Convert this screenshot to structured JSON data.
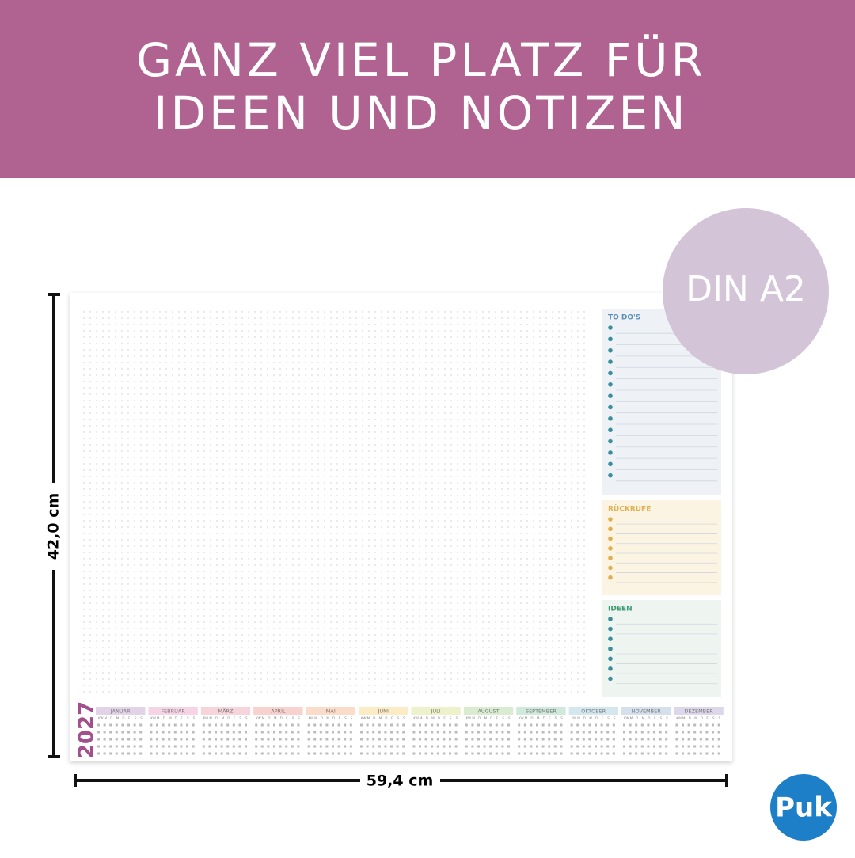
{
  "header": {
    "title_lines": [
      "GANZ VIEL PLATZ FÜR",
      "IDEEN UND NOTIZEN"
    ]
  },
  "badge": "DIN A2",
  "dimensions": {
    "height": "42,0 cm",
    "width": "59,4 cm"
  },
  "planner": {
    "panels": [
      {
        "title": "TO DO'S",
        "rows": 14,
        "color": "#5b8fb8",
        "background": "#eef2f7"
      },
      {
        "title": "RÜCKRUFE",
        "rows": 7,
        "color": "#e0b050",
        "background": "#fbf4e2"
      },
      {
        "title": "IDEEN",
        "rows": 7,
        "color": "#3a9a70",
        "background": "#eef5f1"
      }
    ],
    "calendar": {
      "year": "2027",
      "weekday_header": [
        "KW",
        "M",
        "D",
        "M",
        "D",
        "F",
        "S",
        "S"
      ],
      "months": [
        {
          "name": "JANUAR",
          "color": "#e3d3e6"
        },
        {
          "name": "FEBRUAR",
          "color": "#f6d4e6"
        },
        {
          "name": "MÄRZ",
          "color": "#f7d3dc"
        },
        {
          "name": "APRIL",
          "color": "#f8d2cf"
        },
        {
          "name": "MAI",
          "color": "#fbdcc8"
        },
        {
          "name": "JUNI",
          "color": "#fcecc6"
        },
        {
          "name": "JULI",
          "color": "#eef2cb"
        },
        {
          "name": "AUGUST",
          "color": "#d9ecd0"
        },
        {
          "name": "SEPTEMBER",
          "color": "#cfeadd"
        },
        {
          "name": "OKTOBER",
          "color": "#d3e8ee"
        },
        {
          "name": "NOVEMBER",
          "color": "#d5dfee"
        },
        {
          "name": "DEZEMBER",
          "color": "#dcd7ea"
        }
      ]
    }
  },
  "logo": "Puk"
}
